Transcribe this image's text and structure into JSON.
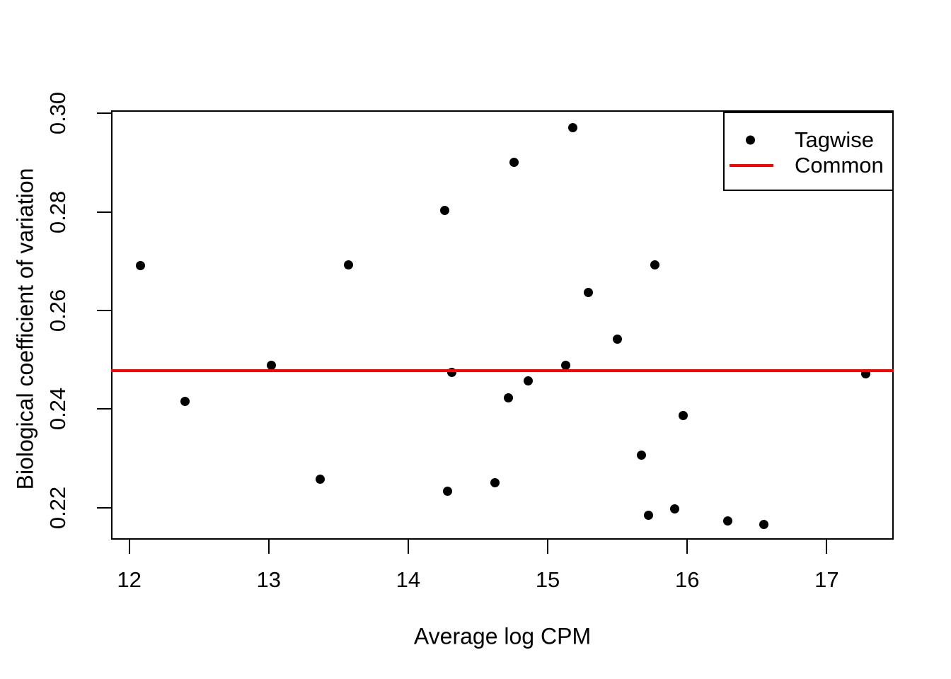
{
  "chart_data": {
    "type": "scatter",
    "title": "",
    "xlabel": "Average log CPM",
    "ylabel": "Biological coefficient of variation",
    "xlim": [
      11.87,
      17.48
    ],
    "ylim": [
      0.2135,
      0.3006
    ],
    "grid": false,
    "x_ticks": [
      12,
      13,
      14,
      15,
      16,
      17
    ],
    "x_tick_labels": [
      "12",
      "13",
      "14",
      "15",
      "16",
      "17"
    ],
    "y_ticks": [
      0.22,
      0.24,
      0.26,
      0.28,
      0.3
    ],
    "y_tick_labels": [
      "0.22",
      "0.24",
      "0.26",
      "0.28",
      "0.30"
    ],
    "legend": [
      {
        "label": "Tagwise",
        "marker": "point",
        "color": "#000000"
      },
      {
        "label": "Common",
        "marker": "line",
        "color": "#ff0000"
      }
    ],
    "legend_position": "topright",
    "series": [
      {
        "name": "Tagwise",
        "type": "scatter",
        "color": "#000000",
        "points": [
          [
            12.08,
            0.2691
          ],
          [
            12.4,
            0.2416
          ],
          [
            13.02,
            0.2488
          ],
          [
            13.37,
            0.2258
          ],
          [
            13.57,
            0.2692
          ],
          [
            14.26,
            0.2803
          ],
          [
            14.28,
            0.2233
          ],
          [
            14.31,
            0.2475
          ],
          [
            14.62,
            0.225
          ],
          [
            14.72,
            0.2423
          ],
          [
            14.76,
            0.2901
          ],
          [
            14.86,
            0.2457
          ],
          [
            15.13,
            0.2488
          ],
          [
            15.18,
            0.2971
          ],
          [
            15.29,
            0.2636
          ],
          [
            15.5,
            0.2542
          ],
          [
            15.67,
            0.2306
          ],
          [
            15.72,
            0.2184
          ],
          [
            15.77,
            0.2692
          ],
          [
            15.91,
            0.2198
          ],
          [
            15.97,
            0.2387
          ],
          [
            16.29,
            0.2173
          ],
          [
            16.55,
            0.2166
          ],
          [
            17.28,
            0.2472
          ]
        ]
      },
      {
        "name": "Common",
        "type": "hline",
        "color": "#ff0000",
        "y": 0.2478
      }
    ]
  }
}
